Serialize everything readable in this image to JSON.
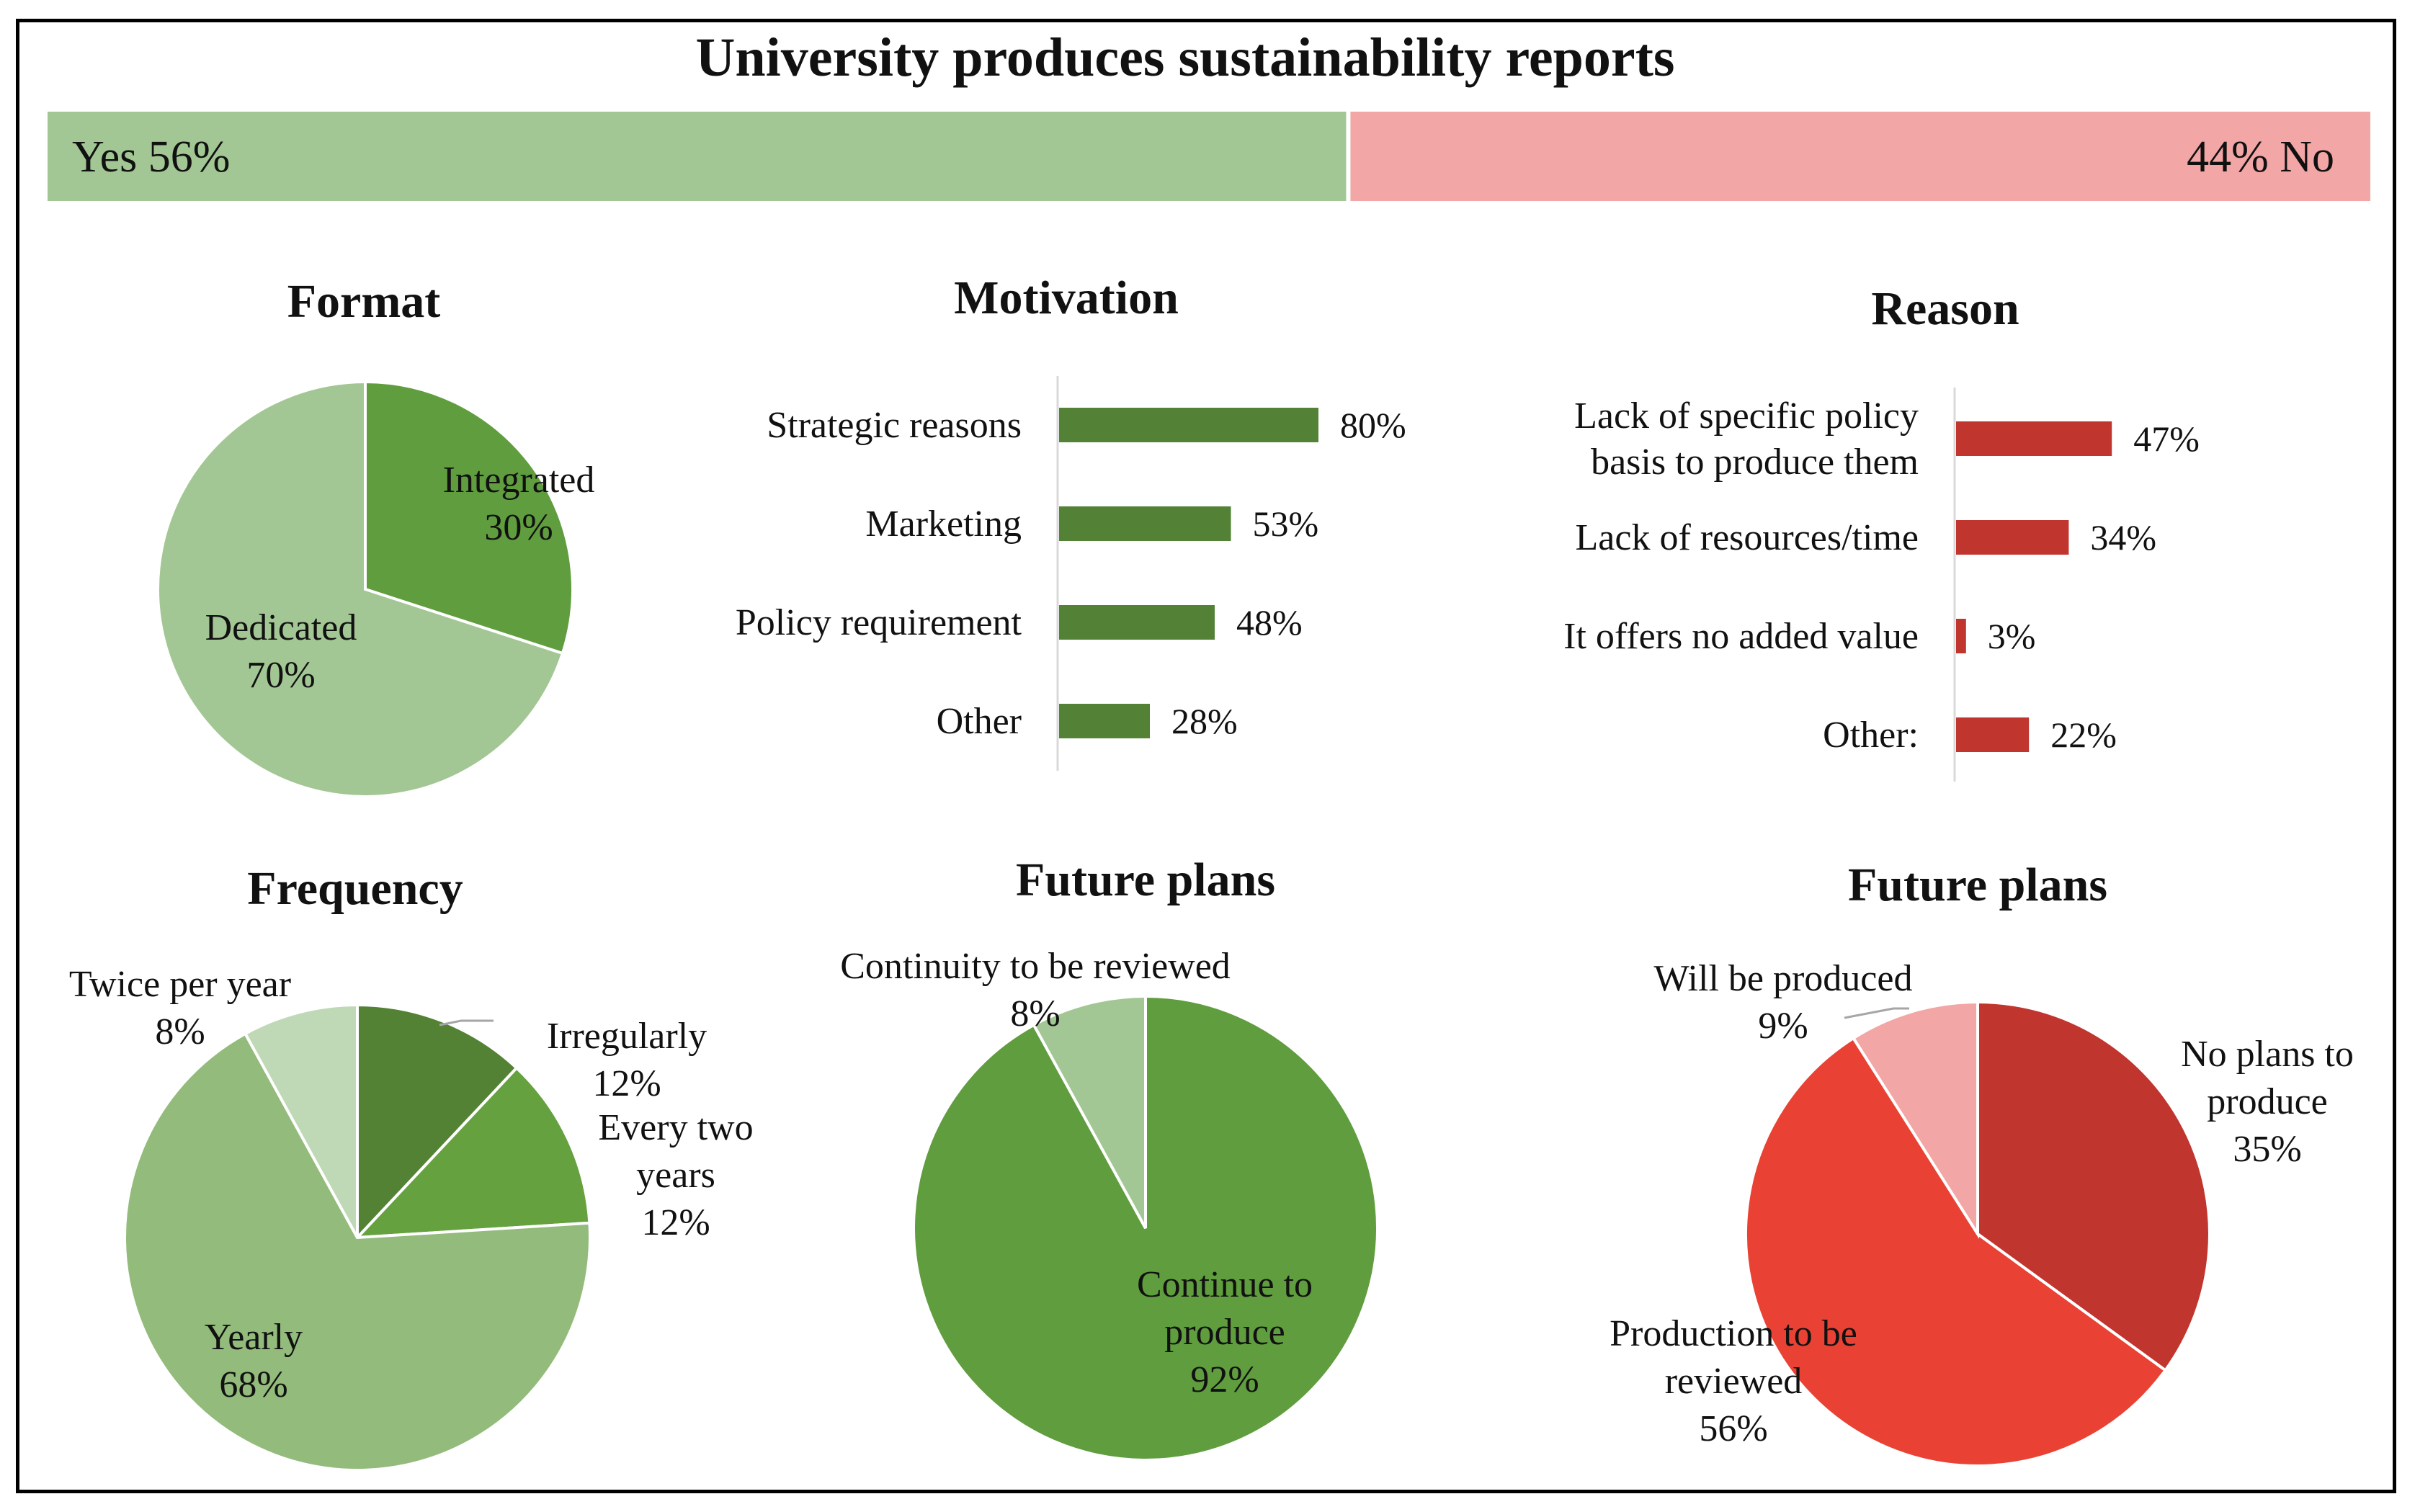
{
  "header": {
    "title": "University produces sustainability reports",
    "yes_label": "Yes 56%",
    "no_label": "44% No"
  },
  "colors": {
    "yes": "#a3c794",
    "no": "#f2a6a5",
    "green_light": "#a3c794",
    "green_mid": "#609d3e",
    "green_dark": "#548235",
    "green_bar": "#538135",
    "green_pale": "#bfd8b5",
    "red_bar": "#c0352e",
    "red_dark": "#c0352e",
    "red_mid": "#e94234",
    "red_pale": "#f2a6a5"
  },
  "chart_data": [
    {
      "id": "overview",
      "type": "bar",
      "title": "University produces sustainability reports",
      "categories": [
        "Yes",
        "No"
      ],
      "values": [
        56,
        44
      ],
      "data_labels": [
        "Yes 56%",
        "44% No"
      ],
      "stacked": true,
      "unit": "%"
    },
    {
      "id": "format",
      "type": "pie",
      "title": "Format",
      "slices": [
        {
          "name": "Integrated",
          "value": 30,
          "label_lines": [
            "Integrated",
            "30%"
          ],
          "color": "#609d3e"
        },
        {
          "name": "Dedicated",
          "value": 70,
          "label_lines": [
            "Dedicated",
            "70%"
          ],
          "color": "#a3c794"
        }
      ]
    },
    {
      "id": "motivation",
      "type": "bar",
      "orientation": "horizontal",
      "title": "Motivation",
      "categories": [
        [
          "Strategic reasons"
        ],
        [
          "Marketing"
        ],
        [
          "Policy requirement"
        ],
        [
          "Other"
        ]
      ],
      "values": [
        80,
        53,
        48,
        28
      ],
      "data_labels": [
        "80%",
        "53%",
        "48%",
        "28%"
      ],
      "color": "#538135",
      "xlim": [
        0,
        100
      ]
    },
    {
      "id": "reason",
      "type": "bar",
      "orientation": "horizontal",
      "title": "Reason",
      "categories": [
        [
          "Lack of specific policy",
          "basis to produce them"
        ],
        [
          "Lack of resources/time"
        ],
        [
          "It offers no added value"
        ],
        [
          "Other:"
        ]
      ],
      "values": [
        47,
        34,
        3,
        22
      ],
      "data_labels": [
        "47%",
        "34%",
        "3%",
        "22%"
      ],
      "color": "#c0352e",
      "xlim": [
        0,
        100
      ]
    },
    {
      "id": "frequency",
      "type": "pie",
      "title": "Frequency",
      "slices": [
        {
          "name": "Irregularly",
          "value": 12,
          "label_lines": [
            "Irregularly",
            "12%"
          ],
          "color": "#548235"
        },
        {
          "name": "Every two years",
          "value": 12,
          "label_lines": [
            "Every two",
            "years",
            "12%"
          ],
          "color": "#66a140"
        },
        {
          "name": "Yearly",
          "value": 68,
          "label_lines": [
            "Yearly",
            "68%"
          ],
          "color": "#93bb7b"
        },
        {
          "name": "Twice per year",
          "value": 8,
          "label_lines": [
            "Twice per year",
            "8%"
          ],
          "color": "#bfd8b5"
        }
      ]
    },
    {
      "id": "future_plans_yes",
      "type": "pie",
      "title": "Future plans",
      "slices": [
        {
          "name": "Continue to produce",
          "value": 92,
          "label_lines": [
            "Continue to",
            "produce",
            "92%"
          ],
          "color": "#609d3e"
        },
        {
          "name": "Continuity to be reviewed",
          "value": 8,
          "label_lines": [
            "Continuity to be reviewed",
            "8%"
          ],
          "color": "#a3c794"
        }
      ]
    },
    {
      "id": "future_plans_no",
      "type": "pie",
      "title": "Future plans",
      "slices": [
        {
          "name": "No plans to produce",
          "value": 35,
          "label_lines": [
            "No plans to",
            "produce",
            "35%"
          ],
          "color": "#c0352e"
        },
        {
          "name": "Production to be reviewed",
          "value": 56,
          "label_lines": [
            "Production to be",
            "reviewed",
            "56%"
          ],
          "color": "#e94234"
        },
        {
          "name": "Will be produced",
          "value": 9,
          "label_lines": [
            "Will be produced",
            "9%"
          ],
          "color": "#f2a6a5"
        }
      ]
    }
  ]
}
